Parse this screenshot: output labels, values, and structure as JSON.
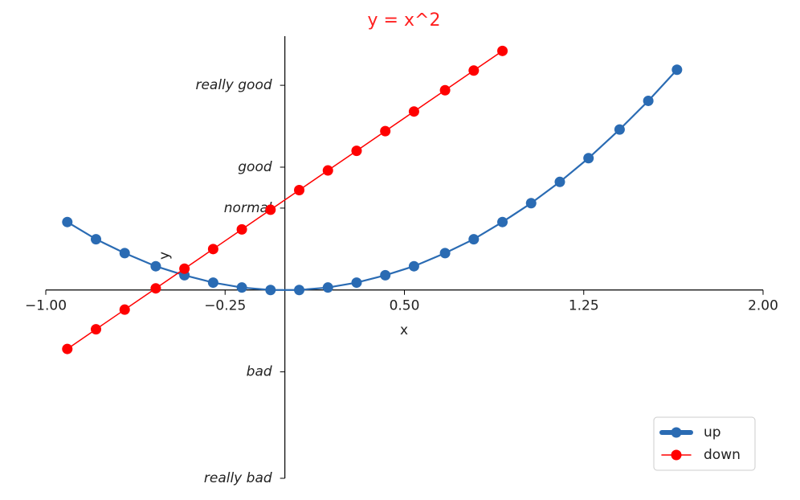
{
  "chart_data": {
    "type": "line",
    "title": "y = x^2",
    "title_color": "#ff2020",
    "x_label": "x",
    "y_label": "y",
    "xlim": [
      -1,
      2
    ],
    "xticks": [
      {
        "value": -1,
        "label": "−1.00"
      },
      {
        "value": -0.25,
        "label": "−0.25"
      },
      {
        "value": 0.5,
        "label": "0.50"
      },
      {
        "value": 1.25,
        "label": "1.25"
      },
      {
        "value": 2,
        "label": "2.00"
      }
    ],
    "ylim": [
      -2.3,
      3.1
    ],
    "yticks": [
      {
        "value": -2.3,
        "label": "really bad"
      },
      {
        "value": -1,
        "label": "bad"
      },
      {
        "value": 1,
        "label": "normal"
      },
      {
        "value": 1.5,
        "label": "good"
      },
      {
        "value": 2.5,
        "label": "really good"
      }
    ],
    "legend": "lower right",
    "series": [
      {
        "name": "up",
        "color": "#2a6bb3",
        "x": [
          -0.91,
          -0.79,
          -0.67,
          -0.54,
          -0.42,
          -0.3,
          -0.18,
          -0.06,
          0.06,
          0.18,
          0.3,
          0.42,
          0.54,
          0.67,
          0.79,
          0.91,
          1.03,
          1.15,
          1.27,
          1.4,
          1.52,
          1.64
        ],
        "values": [
          0.83,
          0.62,
          0.45,
          0.29,
          0.18,
          0.09,
          0.03,
          0.0,
          0.0,
          0.03,
          0.09,
          0.18,
          0.29,
          0.45,
          0.62,
          0.83,
          1.06,
          1.32,
          1.61,
          1.96,
          2.31,
          2.69
        ]
      },
      {
        "name": "down",
        "color": "#ff0000",
        "x": [
          -0.91,
          -0.79,
          -0.67,
          -0.54,
          -0.42,
          -0.3,
          -0.18,
          -0.06,
          0.06,
          0.18,
          0.3,
          0.42,
          0.54,
          0.67,
          0.79,
          0.91
        ],
        "values": [
          -0.72,
          -0.48,
          -0.24,
          0.02,
          0.26,
          0.5,
          0.74,
          0.98,
          1.22,
          1.46,
          1.7,
          1.94,
          2.18,
          2.44,
          2.68,
          2.92
        ]
      }
    ]
  }
}
